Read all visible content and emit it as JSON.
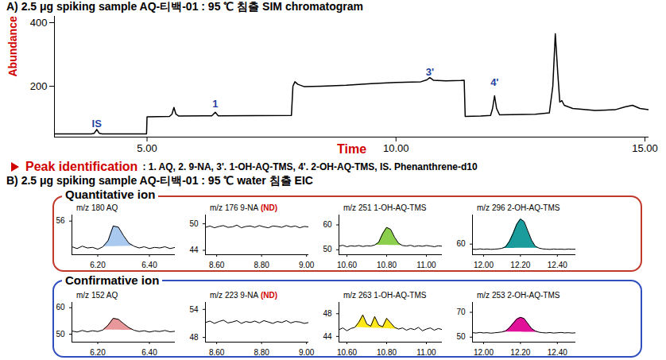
{
  "chart_data": [
    {
      "type": "line",
      "title": "A) 2.5 μg spiking sample AQ-티백-01 : 95 ℃ 침출 SIM chromatogram",
      "x_label": "Time",
      "y_label": "Abundance",
      "x": [
        3.14,
        3.88,
        3.94,
        3.99,
        4.04,
        4.1,
        4.99,
        5,
        5.45,
        5.5,
        5.54,
        5.58,
        5.64,
        6.3,
        6.37,
        6.43,
        7.9,
        7.93,
        7.97,
        8.03,
        8.15,
        8.5,
        9,
        9.5,
        10,
        10.5,
        10.62,
        10.68,
        10.75,
        11,
        11.3,
        11.37,
        11.39,
        11.7,
        11.9,
        11.94,
        11.98,
        12.02,
        12.08,
        12.8,
        13.08,
        13.15,
        13.2,
        13.25,
        13.29,
        13.33,
        13.38,
        13.55,
        14,
        14.4,
        14.6,
        14.75,
        14.9,
        15.08
      ],
      "values": [
        50,
        50,
        52,
        64,
        52,
        50,
        50,
        104,
        105,
        112,
        133,
        112,
        106,
        107,
        118,
        107,
        108,
        200,
        214,
        206,
        199,
        200,
        203,
        208,
        212,
        214,
        220,
        227,
        219,
        217,
        218,
        219,
        105,
        106,
        108,
        130,
        170,
        130,
        110,
        112,
        116,
        200,
        365,
        240,
        150,
        155,
        140,
        130,
        124,
        126,
        135,
        140,
        130,
        126
      ],
      "color": "#000000",
      "xlim": [
        3.14,
        15.08
      ],
      "xticks": [
        {
          "value": 5,
          "label": "5.00"
        },
        {
          "value": 10,
          "label": "10.00"
        },
        {
          "value": 15,
          "label": "15.00"
        }
      ],
      "ylim": [
        40,
        420
      ],
      "yticks": [
        200,
        400
      ],
      "annotations": [
        {
          "x": 3.99,
          "y": 82,
          "text": "IS"
        },
        {
          "x": 6.37,
          "y": 143,
          "text": "1"
        },
        {
          "x": 10.68,
          "y": 245,
          "text": "3'"
        },
        {
          "x": 11.98,
          "y": 212,
          "text": "4'"
        }
      ],
      "caption": {
        "label": "Peak identification",
        "text": ": 1. AQ, 2. 9-NA, 3'. 1-OH-AQ-TMS, 4'. 2-OH-AQ-TMS, IS. Phenanthrene-d10"
      }
    },
    {
      "type": "line",
      "group": "Quantitative ion",
      "title": "m/z 180 AQ",
      "x": [
        6.1,
        6.12,
        6.14,
        6.16,
        6.18,
        6.2,
        6.22,
        6.24,
        6.26,
        6.28,
        6.3,
        6.32,
        6.34,
        6.36,
        6.38,
        6.4,
        6.42,
        6.44,
        6.46,
        6.48,
        6.5
      ],
      "values": [
        51.8,
        51.5,
        51.9,
        51.6,
        51.7,
        51.4,
        51.8,
        52.8,
        55.2,
        55.0,
        53.6,
        52.4,
        51.9,
        51.6,
        51.8,
        51.5,
        51.7,
        51.6,
        51.8,
        51.5,
        51.7
      ],
      "xlim": [
        6.1,
        6.5
      ],
      "xticks": [
        {
          "value": 6.2,
          "label": "6.20"
        },
        {
          "value": 6.4,
          "label": "6.40"
        }
      ],
      "ylim": [
        50.5,
        57
      ],
      "yticks": [
        56
      ],
      "peak_window": [
        6.22,
        6.34
      ],
      "color": "#a9c9ee"
    },
    {
      "type": "line",
      "group": "Quantitative ion",
      "title": "m/z 176 9-NA",
      "subtitle": "(ND)",
      "x": [
        8.55,
        8.57,
        8.59,
        8.61,
        8.63,
        8.65,
        8.67,
        8.69,
        8.71,
        8.73,
        8.75,
        8.77,
        8.79,
        8.81,
        8.83,
        8.85,
        8.87,
        8.89,
        8.91,
        8.93,
        8.95,
        8.97,
        8.99,
        9.01
      ],
      "values": [
        49.2,
        49.5,
        49.1,
        49.4,
        49.6,
        49.2,
        49.3,
        49.7,
        49.1,
        49.4,
        49.5,
        49.2,
        49.6,
        49.3,
        49.1,
        49.5,
        49.4,
        49.2,
        49.6,
        49.3,
        49.5,
        49.1,
        49.4,
        49.3
      ],
      "xlim": [
        8.55,
        9.01
      ],
      "xticks": [
        {
          "value": 8.6,
          "label": "8.60"
        },
        {
          "value": 8.8,
          "label": "8.80"
        },
        {
          "value": 9,
          "label": "9.00"
        }
      ],
      "ylim": [
        43,
        52
      ],
      "yticks": [
        44,
        50
      ]
    },
    {
      "type": "line",
      "group": "Quantitative ion",
      "title": "m/z 251 1-OH-AQ-TMS",
      "x": [
        10.56,
        10.58,
        10.6,
        10.62,
        10.64,
        10.66,
        10.68,
        10.7,
        10.72,
        10.74,
        10.76,
        10.78,
        10.8,
        10.82,
        10.84,
        10.86,
        10.88,
        10.9,
        10.92,
        10.94,
        10.96,
        10.98,
        11,
        11.02,
        11.04,
        11.06,
        11.08
      ],
      "values": [
        51.5,
        51.8,
        51.2,
        51.6,
        51.4,
        51.7,
        51.3,
        51.6,
        51.5,
        51.9,
        53.0,
        56.5,
        59.0,
        58.2,
        55.0,
        52.6,
        51.7,
        51.5,
        51.8,
        51.3,
        51.6,
        51.4,
        51.7,
        51.5,
        51.2,
        51.6,
        51.4
      ],
      "xlim": [
        10.56,
        11.08
      ],
      "xticks": [
        {
          "value": 10.6,
          "label": "10.60"
        },
        {
          "value": 10.8,
          "label": "10.80"
        },
        {
          "value": 11,
          "label": "11.00"
        }
      ],
      "ylim": [
        48,
        64
      ],
      "yticks": [
        50,
        60
      ],
      "peak_window": [
        10.74,
        10.88
      ],
      "color": "#8ccf4d"
    },
    {
      "type": "line",
      "group": "Quantitative ion",
      "title": "m/z 296 2-OH-AQ-TMS",
      "x": [
        11.94,
        11.96,
        11.98,
        12,
        12.02,
        12.04,
        12.06,
        12.08,
        12.1,
        12.12,
        12.14,
        12.16,
        12.18,
        12.2,
        12.22,
        12.24,
        12.26,
        12.28,
        12.3,
        12.32,
        12.34,
        12.36,
        12.38,
        12.4,
        12.42,
        12.44,
        12.46,
        12.48,
        12.5
      ],
      "values": [
        56.2,
        56.0,
        56.4,
        56.1,
        56.3,
        56.0,
        56.2,
        56.4,
        56.8,
        58.0,
        62,
        68,
        75,
        79,
        77,
        70,
        63,
        58.5,
        57,
        56.4,
        56.2,
        56.0,
        56.3,
        56.1,
        56.2,
        56.0,
        56.3,
        56.1,
        56.2
      ],
      "xlim": [
        11.94,
        12.5
      ],
      "xticks": [
        {
          "value": 12,
          "label": "12.00"
        },
        {
          "value": 12.2,
          "label": "12.20"
        },
        {
          "value": 12.4,
          "label": "12.40"
        }
      ],
      "ylim": [
        52,
        82
      ],
      "yticks": [
        60
      ],
      "peak_window": [
        12.1,
        12.3
      ],
      "color": "#1a9c9c"
    },
    {
      "type": "line",
      "group": "Confirmative ion",
      "title": "m/z 152 AQ",
      "x": [
        6.1,
        6.12,
        6.14,
        6.16,
        6.18,
        6.2,
        6.22,
        6.24,
        6.26,
        6.28,
        6.3,
        6.32,
        6.34,
        6.36,
        6.38,
        6.4,
        6.42,
        6.44,
        6.46,
        6.48,
        6.5
      ],
      "values": [
        51.2,
        50.8,
        51.4,
        50.9,
        51.3,
        51.0,
        51.6,
        53.4,
        56.0,
        55.6,
        54.0,
        52.5,
        51.5,
        51.0,
        51.3,
        50.8,
        51.2,
        51.0,
        51.4,
        50.9,
        51.1
      ],
      "xlim": [
        6.1,
        6.5
      ],
      "xticks": [
        {
          "value": 6.2,
          "label": "6.20"
        },
        {
          "value": 6.4,
          "label": "6.40"
        }
      ],
      "ylim": [
        47,
        62
      ],
      "yticks": [
        50,
        60
      ],
      "peak_window": [
        6.22,
        6.34
      ],
      "color": "#e8989a"
    },
    {
      "type": "line",
      "group": "Confirmative ion",
      "title": "m/z 223 9-NA",
      "subtitle": "(ND)",
      "x": [
        8.55,
        8.57,
        8.59,
        8.61,
        8.63,
        8.65,
        8.67,
        8.69,
        8.71,
        8.73,
        8.75,
        8.77,
        8.79,
        8.81,
        8.83,
        8.85,
        8.87,
        8.89,
        8.91,
        8.93,
        8.95,
        8.97,
        8.99,
        9.01
      ],
      "values": [
        51.2,
        51.5,
        51.0,
        51.4,
        51.7,
        51.1,
        51.3,
        51.6,
        51.0,
        51.4,
        51.2,
        51.5,
        51.1,
        51.6,
        51.3,
        51.0,
        51.4,
        51.2,
        51.6,
        51.1,
        51.4,
        51.3,
        51.0,
        51.2
      ],
      "xlim": [
        8.55,
        9.01
      ],
      "xticks": [
        {
          "value": 8.6,
          "label": "8.60"
        },
        {
          "value": 8.8,
          "label": "8.80"
        },
        {
          "value": 9,
          "label": "9.00"
        }
      ],
      "ylim": [
        47,
        55.5
      ],
      "yticks": [
        48,
        54
      ]
    },
    {
      "type": "line",
      "group": "Confirmative ion",
      "title": "m/z 263 1-OH-AQ-TMS",
      "x": [
        10.56,
        10.58,
        10.6,
        10.62,
        10.64,
        10.66,
        10.68,
        10.7,
        10.72,
        10.74,
        10.76,
        10.78,
        10.8,
        10.82,
        10.84,
        10.86,
        10.88,
        10.9,
        10.92,
        10.94,
        10.96,
        10.98,
        11,
        11.02,
        11.04,
        11.06,
        11.08
      ],
      "values": [
        45.2,
        45.5,
        45.0,
        45.4,
        45.6,
        46.5,
        47.8,
        46.2,
        45.8,
        47.5,
        46.0,
        45.7,
        47.2,
        46.4,
        45.6,
        45.3,
        45.5,
        45.1,
        45.4,
        45.2,
        45.6,
        45.0,
        45.3,
        45.5,
        45.1,
        45.4,
        45.2
      ],
      "xlim": [
        10.56,
        11.08
      ],
      "xticks": [
        {
          "value": 10.6,
          "label": "10.60"
        },
        {
          "value": 10.8,
          "label": "10.80"
        },
        {
          "value": 11,
          "label": "11.00"
        }
      ],
      "ylim": [
        43,
        50
      ],
      "yticks": [
        44,
        48
      ],
      "peak_window": [
        10.64,
        10.86
      ],
      "color": "#ffe81a"
    },
    {
      "type": "line",
      "group": "Confirmative ion",
      "title": "m/z 253 2-OH-AQ-TMS",
      "x": [
        11.94,
        11.96,
        11.98,
        12,
        12.02,
        12.04,
        12.06,
        12.08,
        12.1,
        12.12,
        12.14,
        12.16,
        12.18,
        12.2,
        12.22,
        12.24,
        12.26,
        12.28,
        12.3,
        12.32,
        12.34,
        12.36,
        12.38,
        12.4,
        12.42,
        12.44,
        12.46,
        12.48,
        12.5
      ],
      "values": [
        53.6,
        53.3,
        53.8,
        53.4,
        53.6,
        53.2,
        53.5,
        53.8,
        54.2,
        55.0,
        57.5,
        61,
        64.5,
        66,
        65,
        61,
        57,
        55,
        54,
        53.6,
        53.4,
        53.7,
        53.3,
        53.5,
        53.8,
        53.4,
        53.6,
        53.3,
        53.5
      ],
      "xlim": [
        11.94,
        12.5
      ],
      "xticks": [
        {
          "value": 12,
          "label": "12.00"
        },
        {
          "value": 12.2,
          "label": "12.20"
        },
        {
          "value": 12.4,
          "label": "12.40"
        }
      ],
      "ylim": [
        46,
        78
      ],
      "yticks": [
        50,
        70
      ],
      "peak_window": [
        12.1,
        12.3
      ],
      "color": "#e2119a"
    }
  ],
  "panel_b": {
    "title": "B) 2.5 μg spiking sample AQ-티백-01 : 95 ℃ water 침출 EIC",
    "groups": [
      {
        "name": "Quantitative ion",
        "color": "#c0392b"
      },
      {
        "name": "Confirmative ion",
        "color": "#2f4fbf"
      }
    ]
  }
}
